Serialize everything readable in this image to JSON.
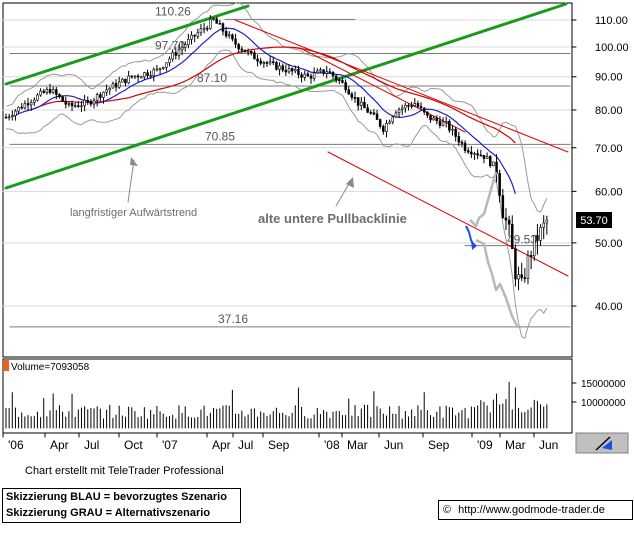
{
  "chart_data": {
    "type": "candlestick",
    "price_ticks": [
      40.0,
      50.0,
      60.0,
      70.0,
      80.0,
      90.0,
      100.0,
      110.0
    ],
    "volume_ticks": [
      "10000000",
      "15000000"
    ],
    "x_ticks": [
      "'06",
      "Apr",
      "Jul",
      "Oct",
      "'07",
      "Apr",
      "Jul",
      "Sep",
      "'08",
      "Mar",
      "Jun",
      "Sep",
      "'09",
      "Mar",
      "Jun"
    ],
    "last_price": "53.70",
    "volume_label": "Volume=7093058",
    "levels": [
      {
        "label": "110.26",
        "value": 110.26
      },
      {
        "label": "97.70",
        "value": 97.7
      },
      {
        "label": "87.10",
        "value": 87.1
      },
      {
        "label": "70.85",
        "value": 70.85
      },
      {
        "label": "49.53",
        "value": 49.53
      },
      {
        "label": "37.16",
        "value": 37.16
      }
    ],
    "annotations": {
      "uptrend": "langfristiger Aufwärtstrend",
      "pullback": "alte untere Pullbacklinie"
    },
    "colors": {
      "candles": "#000000",
      "ma_blue": "#1f1fcc",
      "ma_red": "#d40000",
      "channel_green": "#1a9a1a",
      "channel_red": "#e00000",
      "bollinger": "#9a9a9a",
      "scenario_blue": "#1a4fe0",
      "scenario_grey": "#b8b8b8",
      "volume_bar": "#000000",
      "volume_label_bg": "#e8641e"
    }
  },
  "footer": {
    "credit": "Chart erstellt mit TeleTrader Professional",
    "legend_blue": "Skizzierung BLAU = bevorzugtes Szenario",
    "legend_grey": "Skizzierung GRAU = Alternativszenario",
    "copyright": "©",
    "url": "http://www.godmode-trader.de"
  }
}
